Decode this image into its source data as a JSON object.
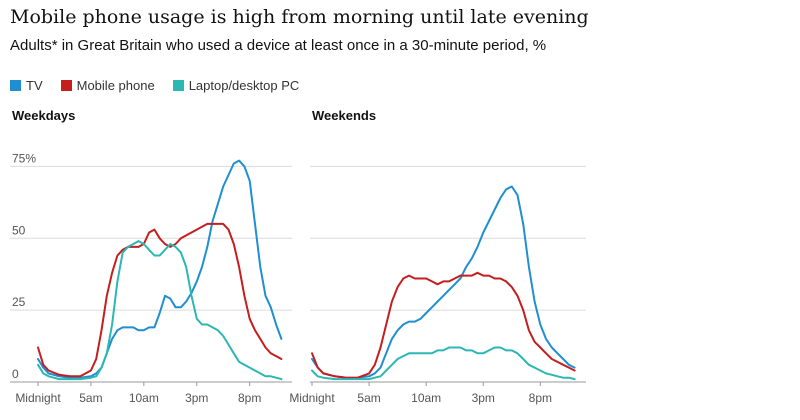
{
  "header": {
    "title": "Mobile phone usage is high from morning until late evening",
    "subtitle": "Adults* in Great Britain who used a device at least once in a 30-minute period, %"
  },
  "legend": [
    {
      "label": "TV",
      "color": "#1f8fd1"
    },
    {
      "label": "Mobile phone",
      "color": "#c41e1e"
    },
    {
      "label": "Laptop/desktop PC",
      "color": "#2bb7b3"
    }
  ],
  "chart_data": [
    {
      "type": "line",
      "title": "Weekdays",
      "ylim": [
        0,
        80
      ],
      "xlim": [
        0,
        24
      ],
      "y_ticks": [
        0,
        25,
        50,
        75
      ],
      "y_tick_labels": [
        "0",
        "25",
        "50",
        "75%"
      ],
      "x_ticks": [
        0,
        5,
        10,
        15,
        20
      ],
      "x_tick_labels": [
        "Midnight",
        "5am",
        "10am",
        "3pm",
        "8pm"
      ],
      "grid": true,
      "series": [
        {
          "name": "TV",
          "color": "#1f8fd1",
          "x": [
            0,
            0.5,
            1,
            2,
            3,
            4,
            5,
            5.5,
            6,
            6.5,
            7,
            7.5,
            8,
            8.5,
            9,
            9.5,
            10,
            10.5,
            11,
            11.5,
            12,
            12.5,
            13,
            13.5,
            14,
            14.5,
            15,
            15.5,
            16,
            16.5,
            17,
            17.5,
            18,
            18.5,
            19,
            19.5,
            20,
            20.5,
            21,
            21.5,
            22,
            22.5,
            23
          ],
          "y": [
            8,
            5,
            3,
            2,
            1.5,
            1.5,
            2,
            3,
            5,
            10,
            15,
            18,
            19,
            19,
            19,
            18,
            18,
            19,
            19,
            24,
            30,
            29,
            26,
            26,
            28,
            31,
            35,
            40,
            47,
            56,
            62,
            68,
            72,
            76,
            77,
            75,
            70,
            55,
            40,
            30,
            26,
            20,
            15
          ]
        },
        {
          "name": "Mobile phone",
          "color": "#c41e1e",
          "x": [
            0,
            0.5,
            1,
            2,
            3,
            4,
            5,
            5.5,
            6,
            6.5,
            7,
            7.5,
            8,
            8.5,
            9,
            9.5,
            10,
            10.5,
            11,
            11.5,
            12,
            12.5,
            13,
            13.5,
            14,
            14.5,
            15,
            15.5,
            16,
            16.5,
            17,
            17.5,
            18,
            18.5,
            19,
            19.5,
            20,
            20.5,
            21,
            21.5,
            22,
            22.5,
            23
          ],
          "y": [
            12,
            6,
            4,
            2.5,
            2,
            2,
            4,
            8,
            18,
            30,
            38,
            44,
            46,
            47,
            47,
            47,
            48,
            52,
            53,
            50,
            48,
            47,
            48,
            50,
            51,
            52,
            53,
            54,
            55,
            55,
            55,
            55,
            53,
            48,
            40,
            30,
            22,
            18,
            15,
            12,
            10,
            9,
            8
          ]
        },
        {
          "name": "Laptop/desktop PC",
          "color": "#2bb7b3",
          "x": [
            0,
            0.5,
            1,
            2,
            3,
            4,
            5,
            5.5,
            6,
            6.5,
            7,
            7.5,
            8,
            8.5,
            9,
            9.5,
            10,
            10.5,
            11,
            11.5,
            12,
            12.5,
            13,
            13.5,
            14,
            14.5,
            15,
            15.5,
            16,
            16.5,
            17,
            17.5,
            18,
            18.5,
            19,
            19.5,
            20,
            20.5,
            21,
            21.5,
            22,
            22.5,
            23
          ],
          "y": [
            6,
            3,
            2,
            1,
            1,
            1,
            1.5,
            2,
            5,
            10,
            20,
            35,
            45,
            47,
            48,
            49,
            48,
            46,
            44,
            44,
            46,
            48,
            47,
            45,
            40,
            30,
            22,
            20,
            20,
            19,
            18,
            16,
            13,
            10,
            7,
            6,
            5,
            4,
            3,
            2,
            2,
            1.5,
            1
          ]
        }
      ]
    },
    {
      "type": "line",
      "title": "Weekends",
      "ylim": [
        0,
        80
      ],
      "xlim": [
        0,
        24
      ],
      "y_ticks": [
        0,
        25,
        50,
        75
      ],
      "y_tick_labels": [
        "0",
        "25",
        "50",
        "75%"
      ],
      "x_ticks": [
        0,
        5,
        10,
        15,
        20
      ],
      "x_tick_labels": [
        "Midnight",
        "5am",
        "10am",
        "3pm",
        "8pm"
      ],
      "grid": true,
      "series": [
        {
          "name": "TV",
          "color": "#1f8fd1",
          "x": [
            0,
            0.5,
            1,
            2,
            3,
            4,
            5,
            5.5,
            6,
            6.5,
            7,
            7.5,
            8,
            8.5,
            9,
            9.5,
            10,
            10.5,
            11,
            11.5,
            12,
            12.5,
            13,
            13.5,
            14,
            14.5,
            15,
            15.5,
            16,
            16.5,
            17,
            17.5,
            18,
            18.5,
            19,
            19.5,
            20,
            20.5,
            21,
            21.5,
            22,
            22.5,
            23
          ],
          "y": [
            8,
            5,
            3,
            2,
            1.5,
            1.5,
            2,
            3,
            5,
            10,
            15,
            18,
            20,
            21,
            21,
            22,
            24,
            26,
            28,
            30,
            32,
            34,
            36,
            40,
            43,
            47,
            52,
            56,
            60,
            64,
            67,
            68,
            65,
            55,
            40,
            28,
            20,
            15,
            12,
            10,
            8,
            6,
            5
          ]
        },
        {
          "name": "Mobile phone",
          "color": "#c41e1e",
          "x": [
            0,
            0.5,
            1,
            2,
            3,
            4,
            5,
            5.5,
            6,
            6.5,
            7,
            7.5,
            8,
            8.5,
            9,
            9.5,
            10,
            10.5,
            11,
            11.5,
            12,
            12.5,
            13,
            13.5,
            14,
            14.5,
            15,
            15.5,
            16,
            16.5,
            17,
            17.5,
            18,
            18.5,
            19,
            19.5,
            20,
            20.5,
            21,
            21.5,
            22,
            22.5,
            23
          ],
          "y": [
            10,
            5,
            3,
            2,
            1.5,
            1.5,
            3,
            6,
            12,
            20,
            28,
            33,
            36,
            37,
            36,
            36,
            36,
            35,
            34,
            35,
            35,
            36,
            37,
            37,
            37,
            38,
            37,
            37,
            36,
            36,
            35,
            33,
            30,
            25,
            18,
            14,
            12,
            10,
            8,
            7,
            6,
            5,
            4
          ]
        },
        {
          "name": "Laptop/desktop PC",
          "color": "#2bb7b3",
          "x": [
            0,
            0.5,
            1,
            2,
            3,
            4,
            5,
            5.5,
            6,
            6.5,
            7,
            7.5,
            8,
            8.5,
            9,
            9.5,
            10,
            10.5,
            11,
            11.5,
            12,
            12.5,
            13,
            13.5,
            14,
            14.5,
            15,
            15.5,
            16,
            16.5,
            17,
            17.5,
            18,
            18.5,
            19,
            19.5,
            20,
            20.5,
            21,
            21.5,
            22,
            22.5,
            23
          ],
          "y": [
            4,
            2,
            1.5,
            1,
            1,
            1,
            1,
            1.5,
            2,
            4,
            6,
            8,
            9,
            10,
            10,
            10,
            10,
            10,
            11,
            11,
            12,
            12,
            12,
            11,
            11,
            10,
            10,
            11,
            12,
            12,
            11,
            11,
            10,
            8,
            6,
            5,
            4,
            3,
            2.5,
            2,
            1.5,
            1.5,
            1
          ]
        }
      ]
    }
  ]
}
